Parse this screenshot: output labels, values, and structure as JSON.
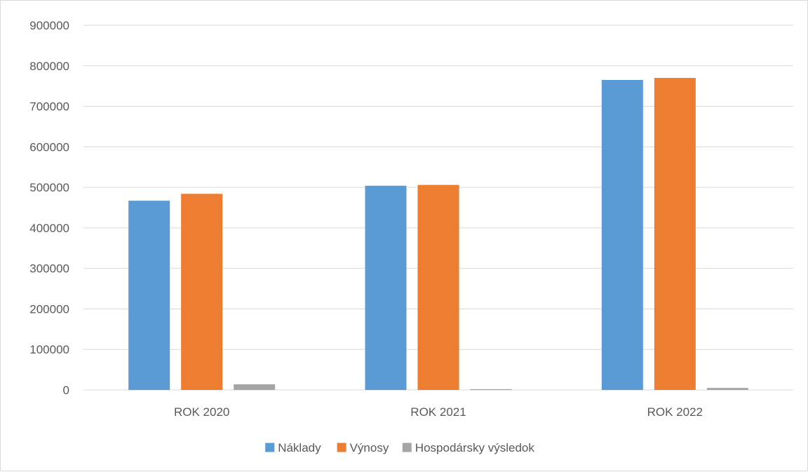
{
  "chart_data": {
    "type": "bar",
    "title": "",
    "xlabel": "",
    "ylabel": "",
    "categories": [
      "ROK 2020",
      "ROK 2021",
      "ROK 2022"
    ],
    "series": [
      {
        "name": "Náklady",
        "values": [
          467000,
          504000,
          765000
        ],
        "color": "#5b9bd5"
      },
      {
        "name": "Výnosy",
        "values": [
          484000,
          506000,
          770000
        ],
        "color": "#ed7d31"
      },
      {
        "name": "Hospodársky výsledok",
        "values": [
          14000,
          2000,
          5000
        ],
        "color": "#a5a5a5"
      }
    ],
    "ylim": [
      0,
      900000
    ],
    "yticks": [
      0,
      100000,
      200000,
      300000,
      400000,
      500000,
      600000,
      700000,
      800000,
      900000
    ],
    "ytick_labels": [
      "0",
      "100000",
      "200000",
      "300000",
      "400000",
      "500000",
      "600000",
      "700000",
      "800000",
      "900000"
    ],
    "grid": true,
    "legend_position": "bottom"
  }
}
